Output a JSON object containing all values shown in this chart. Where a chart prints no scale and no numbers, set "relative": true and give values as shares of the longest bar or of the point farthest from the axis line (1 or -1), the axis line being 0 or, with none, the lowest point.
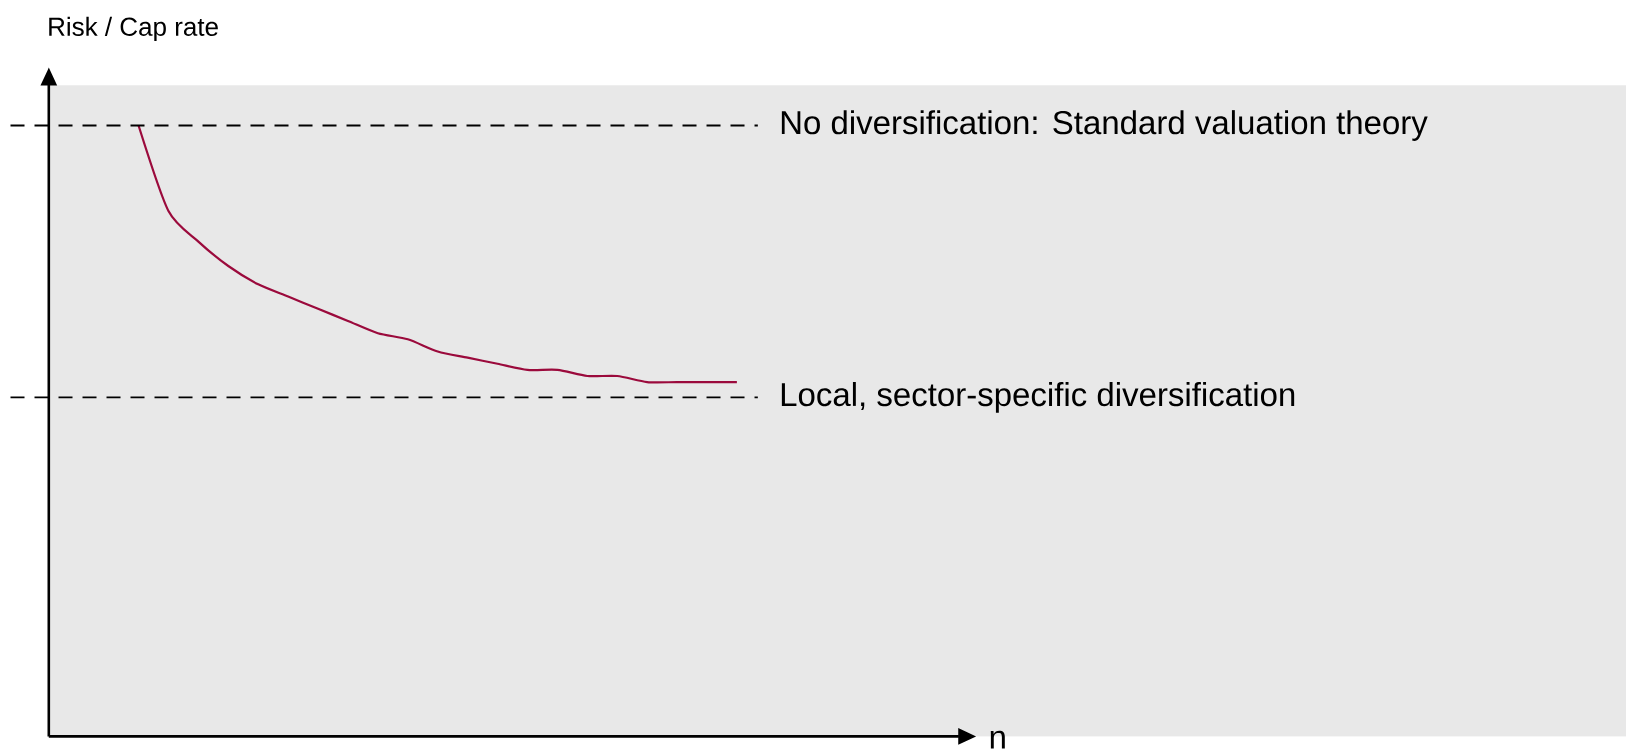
{
  "chart_data": {
    "type": "line",
    "ylabel": "Risk / Cap rate",
    "xlabel": "n",
    "relative": true,
    "categories": [
      null,
      null,
      null,
      null,
      null,
      null,
      null,
      null,
      null,
      null,
      null,
      null,
      null,
      null,
      null,
      null,
      null,
      null,
      null,
      null,
      null,
      null,
      null,
      null,
      null,
      null,
      null,
      null,
      null,
      null,
      null,
      null
    ],
    "series": [
      {
        "color": "#9b0a3c",
        "values": [
          null,
          null,
          null,
          1.0,
          0.86,
          0.81,
          0.77,
          0.74,
          0.72,
          0.7,
          0.68,
          0.66,
          0.65,
          0.63,
          0.62,
          0.61,
          0.6,
          0.6,
          0.59,
          0.59,
          0.58,
          0.58,
          0.58,
          0.58,
          null,
          null,
          null,
          null,
          null,
          null,
          null,
          null
        ]
      }
    ],
    "ref_lines": [
      {
        "axis": "y",
        "value": 1,
        "label": "No diversification: Standard valuation theory",
        "color": "#000000",
        "line_style": "dashed"
      },
      {
        "axis": "y",
        "value": 0.555,
        "label": "Local, sector-specific diversification",
        "color": "#000000",
        "line_style": "dashed"
      }
    ],
    "marker": "none",
    "line_style": "solid"
  }
}
